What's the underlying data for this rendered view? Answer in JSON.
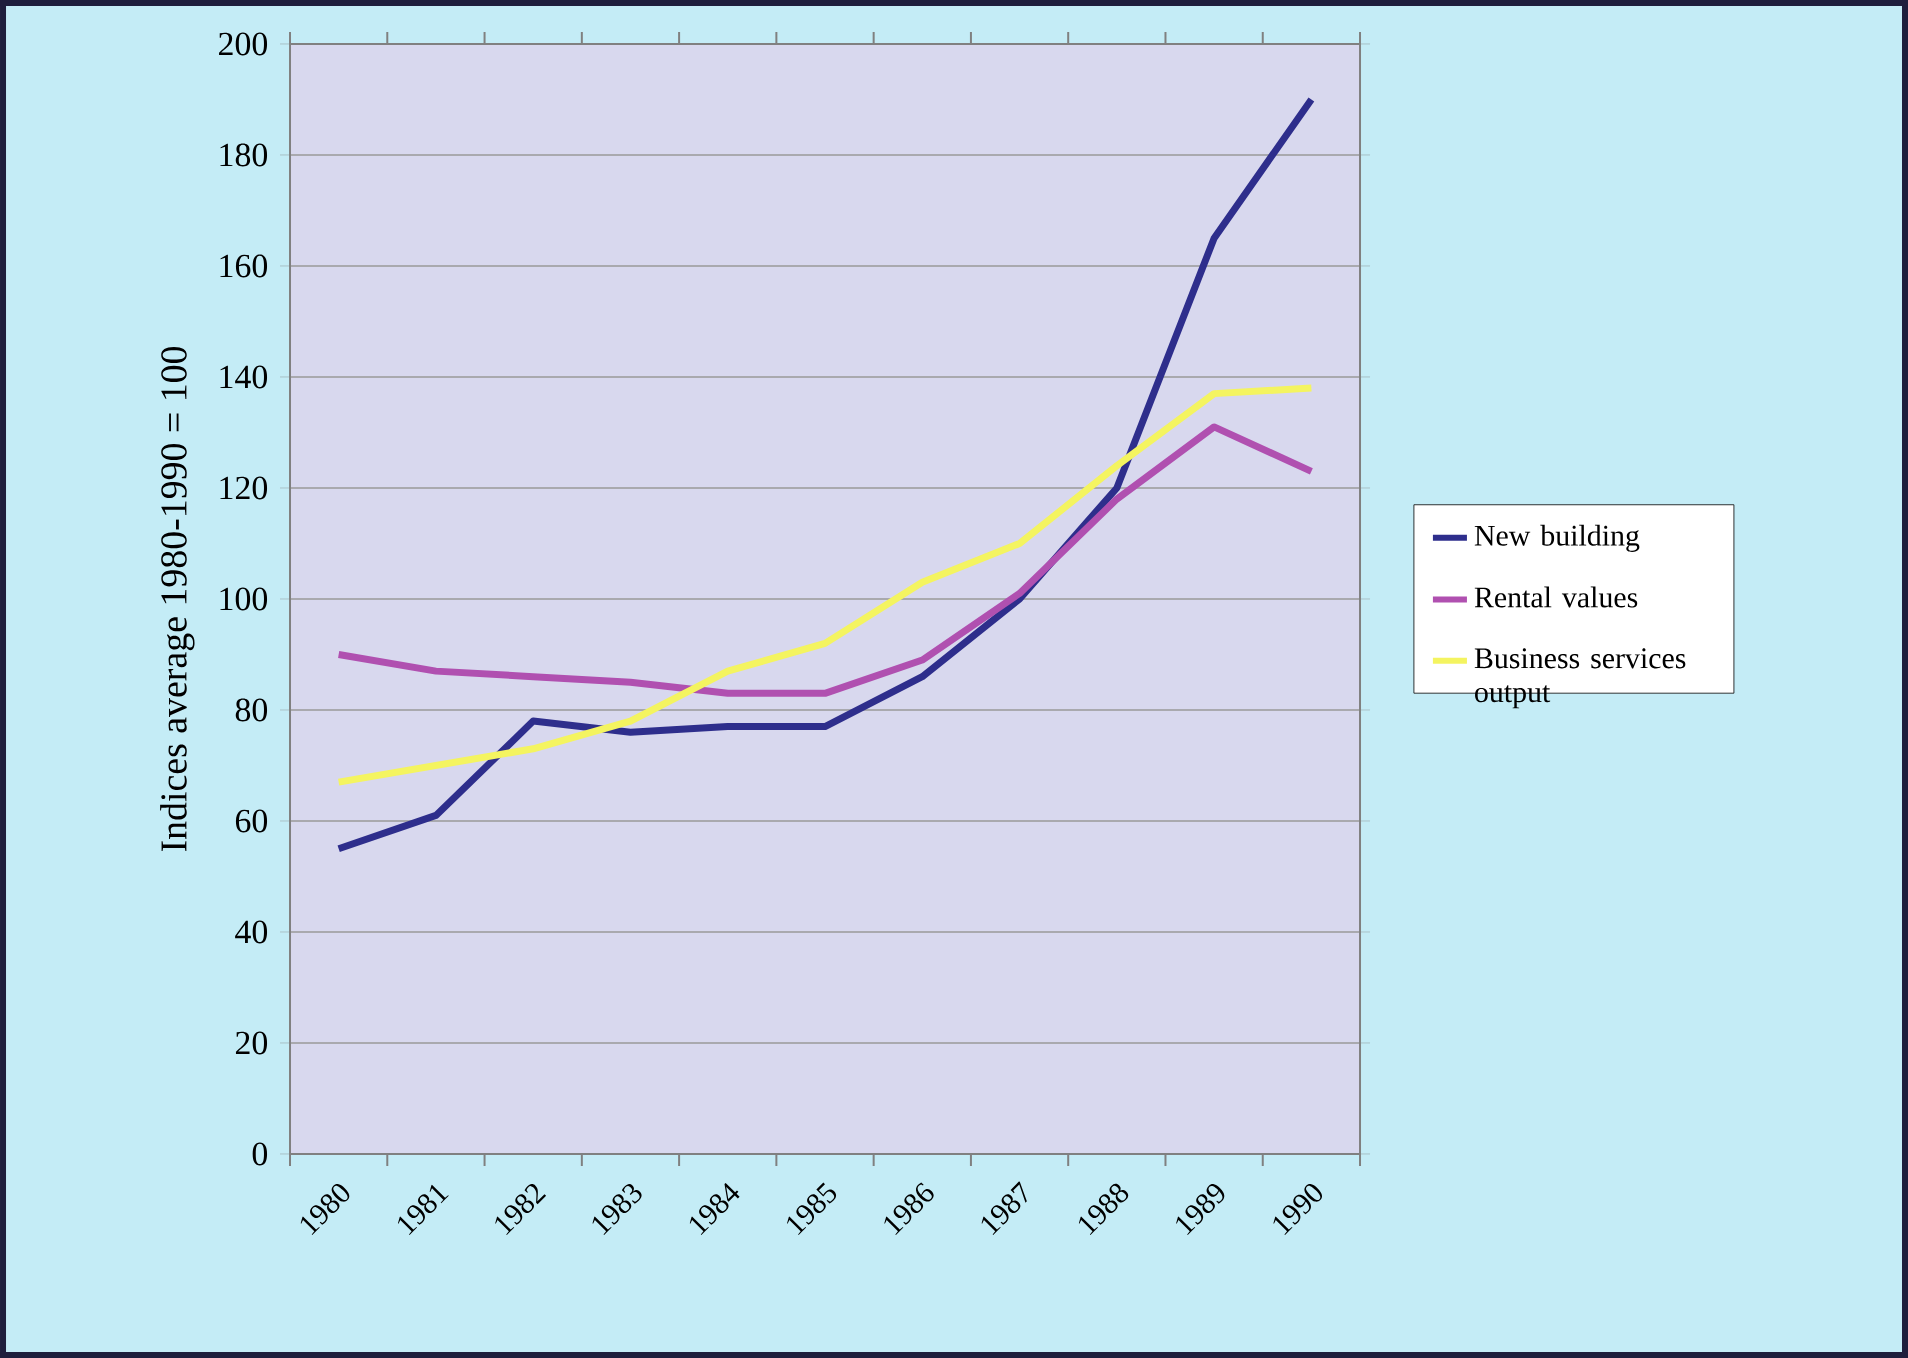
{
  "chart_data": {
    "type": "line",
    "ylabel": "Indices average 1980-1990 = 100",
    "categories": [
      "1980",
      "1981",
      "1982",
      "1983",
      "1984",
      "1985",
      "1986",
      "1987",
      "1988",
      "1989",
      "1990"
    ],
    "series": [
      {
        "name": "New building",
        "color": "#2e2e8c",
        "values": [
          55,
          61,
          78,
          76,
          77,
          77,
          86,
          100,
          120,
          165,
          190
        ]
      },
      {
        "name": "Rental values",
        "color": "#b050b0",
        "values": [
          90,
          87,
          86,
          85,
          83,
          83,
          89,
          101,
          118,
          131,
          123
        ]
      },
      {
        "name": "Business services output",
        "color": "#f4f460",
        "values": [
          67,
          70,
          73,
          78,
          87,
          92,
          103,
          110,
          124,
          137,
          138
        ]
      }
    ],
    "ylim": [
      0,
      200
    ],
    "yticks": [
      0,
      20,
      40,
      60,
      80,
      100,
      120,
      140,
      160,
      180,
      200
    ],
    "grid": "y",
    "legend": "right",
    "marker": "none",
    "line_style": "solid"
  }
}
